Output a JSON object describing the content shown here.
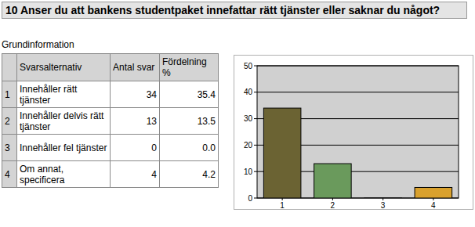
{
  "header": {
    "title": "10 Anser du att bankens studentpaket innefattar rätt tjänster eller saknar du något?"
  },
  "section": {
    "title": "Grundinformation"
  },
  "table": {
    "columns": [
      "Svarsalternativ",
      "Antal svar",
      "Fördelning %"
    ],
    "rows": [
      [
        "1",
        "Innehåller rätt tjänster",
        "34",
        "35.4"
      ],
      [
        "2",
        "Innehåller delvis rätt tjänster",
        "13",
        "13.5"
      ],
      [
        "3",
        "Innehåller fel tjänster",
        "0",
        "0.0"
      ],
      [
        "4",
        "Om annat, specificera",
        "4",
        "4.2"
      ]
    ]
  },
  "chart_data": {
    "type": "bar",
    "categories": [
      "1",
      "2",
      "3",
      "4"
    ],
    "values": [
      34,
      13,
      0,
      4
    ],
    "colors": [
      "#6b6333",
      "#6a9a5c",
      "#4a3a20",
      "#d9a12e"
    ],
    "ylim": [
      0,
      50
    ],
    "yticks": [
      0,
      10,
      20,
      30,
      40,
      50
    ],
    "grid": true
  }
}
